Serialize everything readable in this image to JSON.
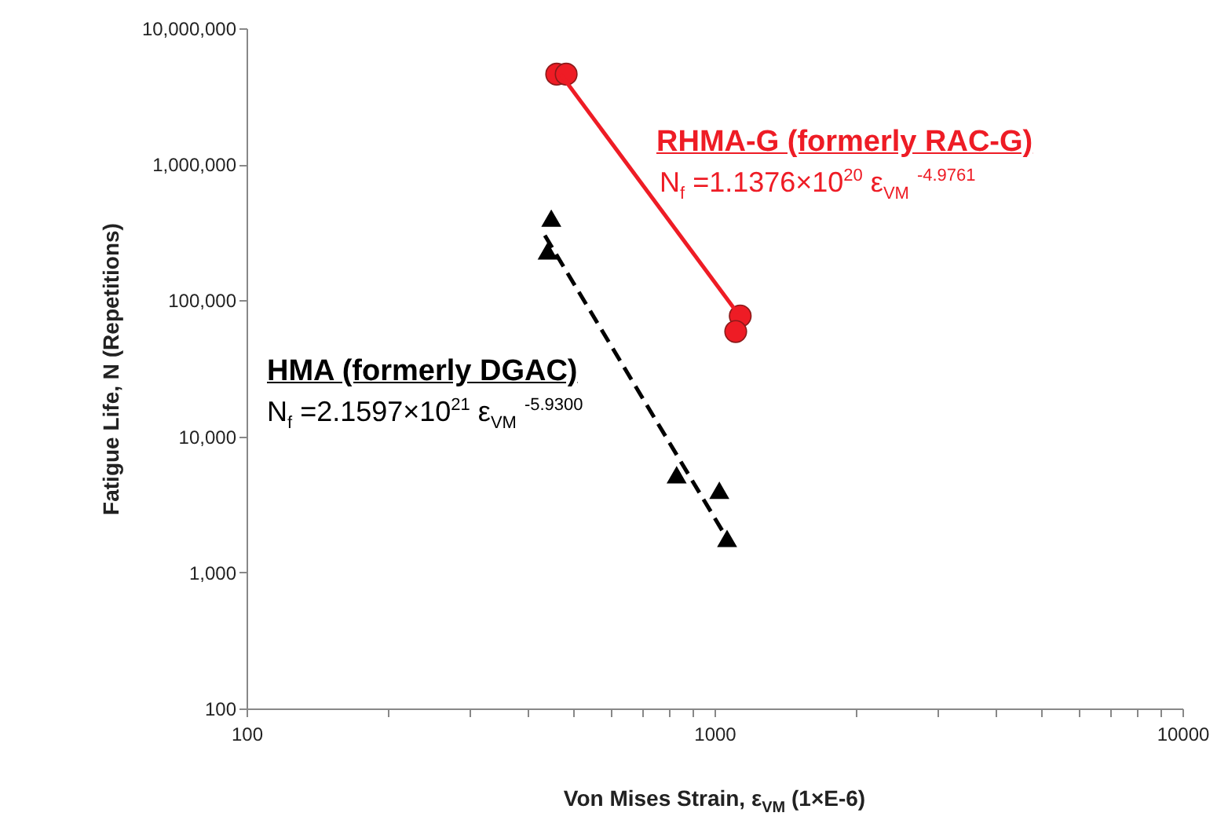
{
  "chart_data": {
    "type": "scatter",
    "xlabel": "Von Mises Strain, ε$_{VM}$ (1×E-6)",
    "ylabel": "Fatigue Life, N (Repetitions)",
    "log": "xy",
    "xlim": [
      100,
      10000
    ],
    "xticks": [
      100,
      {
        "value": 200,
        "label": null
      },
      {
        "value": 300,
        "label": null
      },
      {
        "value": 400,
        "label": null
      },
      {
        "value": 500,
        "label": null
      },
      {
        "value": 600,
        "label": null
      },
      {
        "value": 700,
        "label": null
      },
      {
        "value": 800,
        "label": null
      },
      {
        "value": 900,
        "label": null
      },
      1000,
      {
        "value": 2000,
        "label": null
      },
      {
        "value": 3000,
        "label": null
      },
      {
        "value": 4000,
        "label": null
      },
      {
        "value": 5000,
        "label": null
      },
      {
        "value": 6000,
        "label": null
      },
      {
        "value": 7000,
        "label": null
      },
      {
        "value": 8000,
        "label": null
      },
      {
        "value": 9000,
        "label": null
      },
      10000
    ],
    "ylim": [
      100,
      10000000
    ],
    "yticks": [
      {
        "value": 100,
        "label": "100"
      },
      {
        "value": 1000,
        "label": "1,000"
      },
      {
        "value": 10000,
        "label": "10,000"
      },
      {
        "value": 100000,
        "label": "100,000"
      },
      {
        "value": 1000000,
        "label": "1,000,000"
      },
      {
        "value": 10000000,
        "label": "10,000,000"
      }
    ],
    "grid": false,
    "series": [
      {
        "marker": "circle",
        "color": "#ee1c25",
        "x": [
          460,
          482,
          1135,
          1110
        ],
        "values": [
          4600000,
          4600000,
          76700,
          59000
        ]
      },
      {
        "type": "line",
        "line_style": "solid",
        "color": "#ee1c25",
        "x": [
          469,
          1122
        ],
        "values": [
          4600000,
          80000
        ]
      },
      {
        "marker": "triangle",
        "color": "#000000",
        "x": [
          448,
          440,
          830,
          1024,
          1064
        ],
        "values": [
          400000,
          230000,
          5200,
          4000,
          1770
        ]
      },
      {
        "type": "line",
        "line_style": "dashed",
        "color": "#000000",
        "x": [
          434,
          1064
        ],
        "values": [
          300000,
          1770
        ]
      }
    ],
    "annotations": [
      "RHMA-G (formerly RAC-G)",
      "N$_{f}$ =1.1376×10$^{20}$ ε$_{VM}$ $^{-4.9761}$",
      "HMA  (formerly DGAC)",
      "N$_{f}$ =2.1597×10$^{21}$ ε$_{VM}$ $^{-5.9300}$"
    ]
  }
}
